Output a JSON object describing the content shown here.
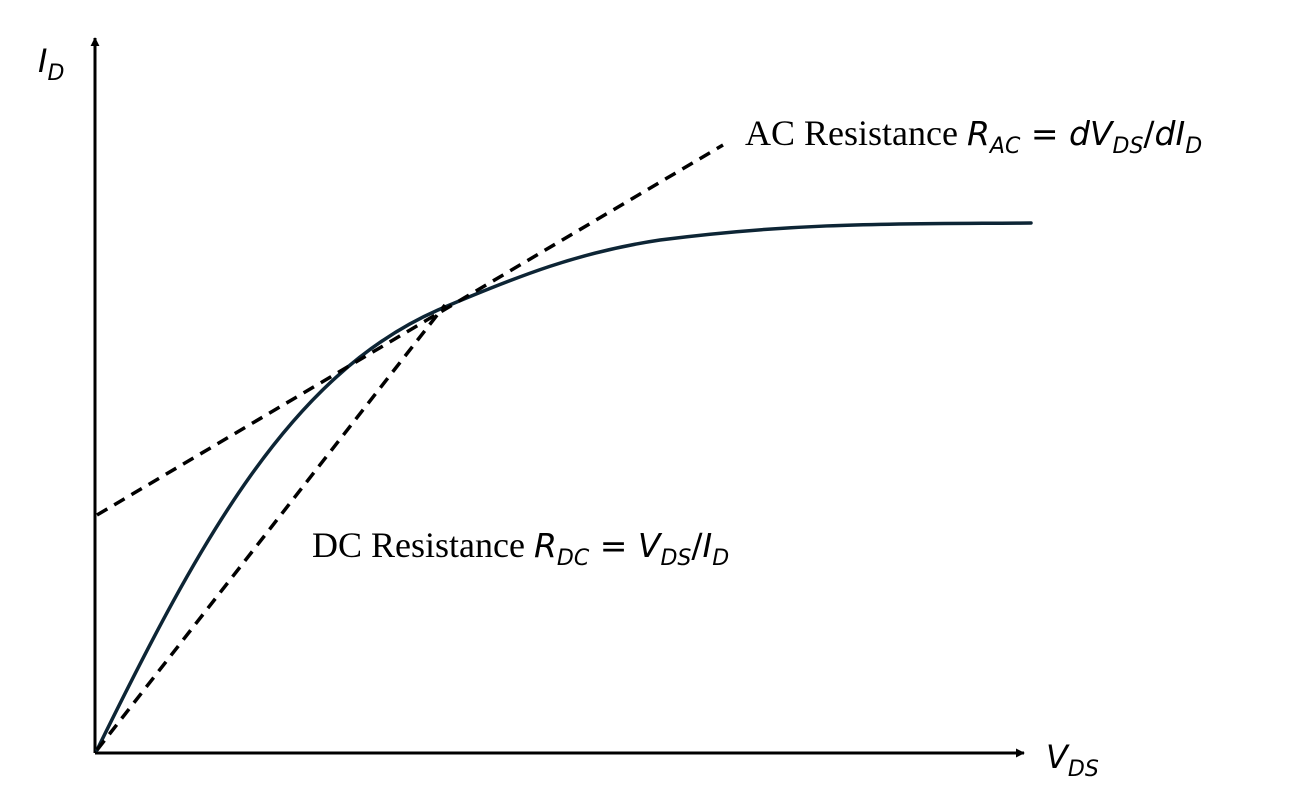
{
  "colors": {
    "curve": "#0d2535",
    "axes": "#000000",
    "tangent_lines": "#000000"
  },
  "axes": {
    "y_label": {
      "main": "I",
      "sub": "D"
    },
    "x_label": {
      "main": "V",
      "sub": "DS"
    }
  },
  "annotations": {
    "ac": {
      "prefix": "AC Resistance ",
      "r": "R",
      "r_sub": "AC",
      "equals": " = ",
      "d1": "dV",
      "d1_sub": "DS",
      "slash": "/",
      "d2": "dI",
      "d2_sub": "D"
    },
    "dc": {
      "prefix": "DC Resistance ",
      "r": "R",
      "r_sub": "DC",
      "equals": " = ",
      "v": "V",
      "v_sub": "DS",
      "slash": "/",
      "i": "I",
      "i_sub": "D"
    }
  }
}
